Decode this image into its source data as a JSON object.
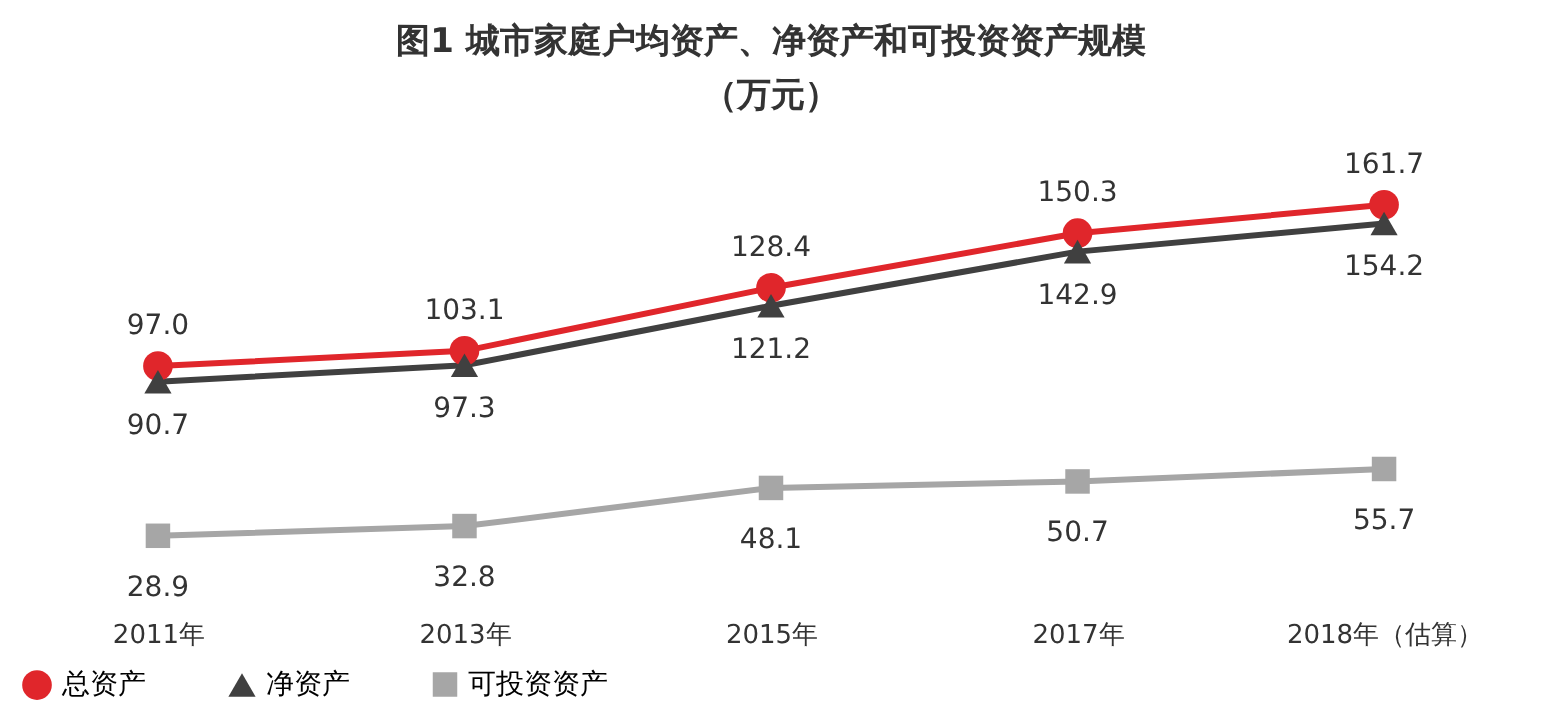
{
  "chart_data": {
    "type": "line",
    "title": "图1  城市家庭户均资产、净资产和可投资资产规模",
    "subtitle": "（万元）",
    "categories": [
      "2011年",
      "2013年",
      "2015年",
      "2017年",
      "2018年（估算）"
    ],
    "series": [
      {
        "name": "总资产",
        "color": "#e0262b",
        "marker": "circle",
        "line_style": "solid",
        "values": [
          97.0,
          103.1,
          128.4,
          150.3,
          161.7
        ],
        "value_labels": [
          "97.0",
          "103.1",
          "128.4",
          "150.3",
          "161.7"
        ]
      },
      {
        "name": "净资产",
        "color": "#404040",
        "marker": "triangle",
        "line_style": "solid",
        "values": [
          90.7,
          97.3,
          121.2,
          142.9,
          154.2
        ],
        "value_labels": [
          "90.7",
          "97.3",
          "121.2",
          "142.9",
          "154.2"
        ]
      },
      {
        "name": "可投资资产",
        "color": "#a6a6a6",
        "marker": "square",
        "line_style": "solid",
        "values": [
          28.9,
          32.8,
          48.1,
          50.7,
          55.7
        ],
        "value_labels": [
          "28.9",
          "32.8",
          "48.1",
          "50.7",
          "55.7"
        ]
      }
    ],
    "grid": false,
    "legend": "bottom"
  }
}
